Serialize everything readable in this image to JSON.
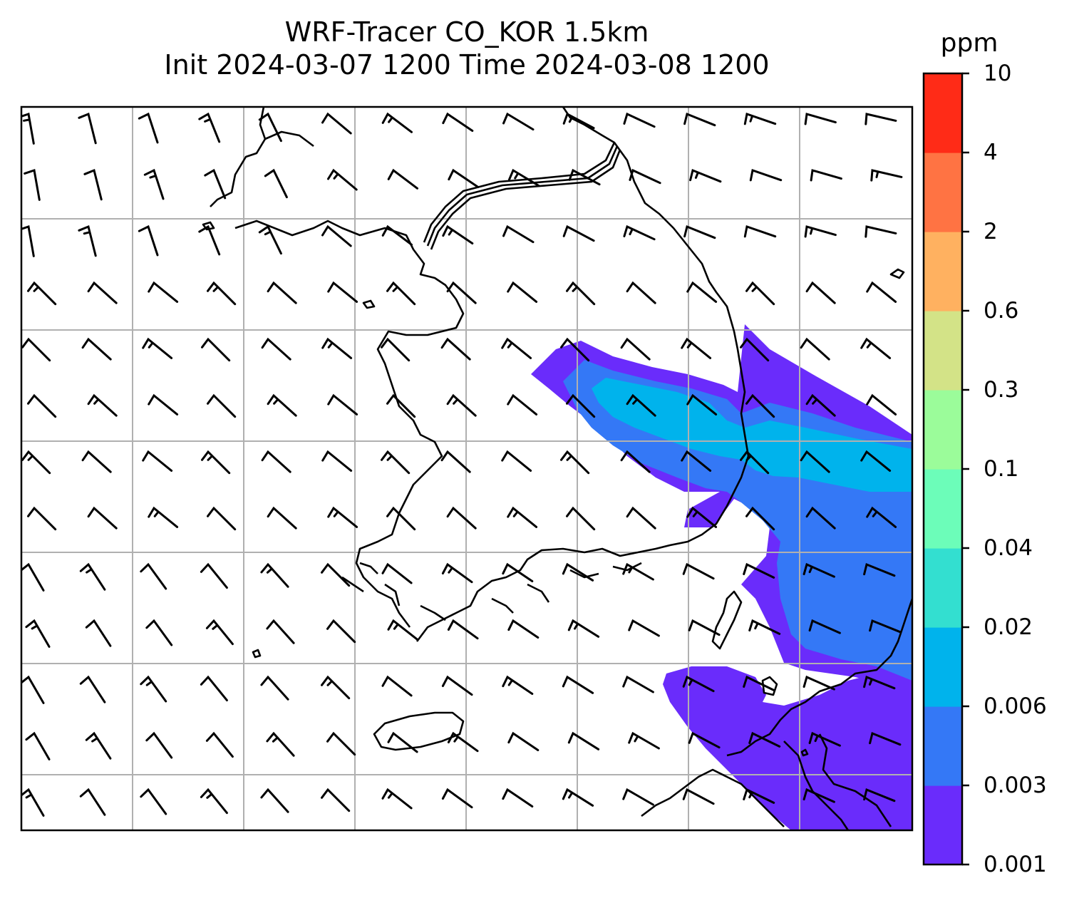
{
  "title": {
    "line1": "WRF-Tracer CO_KOR 1.5km",
    "line2": "Init 2024-03-07 1200 Time 2024-03-08 1200"
  },
  "colorbar": {
    "unit": "ppm",
    "levels": [
      "0.001",
      "0.003",
      "0.006",
      "0.02",
      "0.04",
      "0.1",
      "0.3",
      "0.6",
      "2",
      "4",
      "10"
    ],
    "colors": [
      "#6a2cfb",
      "#3478f6",
      "#00b3ec",
      "#33dfd0",
      "#6cfdb9",
      "#9bfc9a",
      "#d3e387",
      "#ffb160",
      "#ff7343",
      "#ff2b17"
    ]
  },
  "map": {
    "background": "#ffffff",
    "gridline_color": "#b0b0b0",
    "coastline_color": "#000000",
    "barb_color": "#000000"
  }
}
